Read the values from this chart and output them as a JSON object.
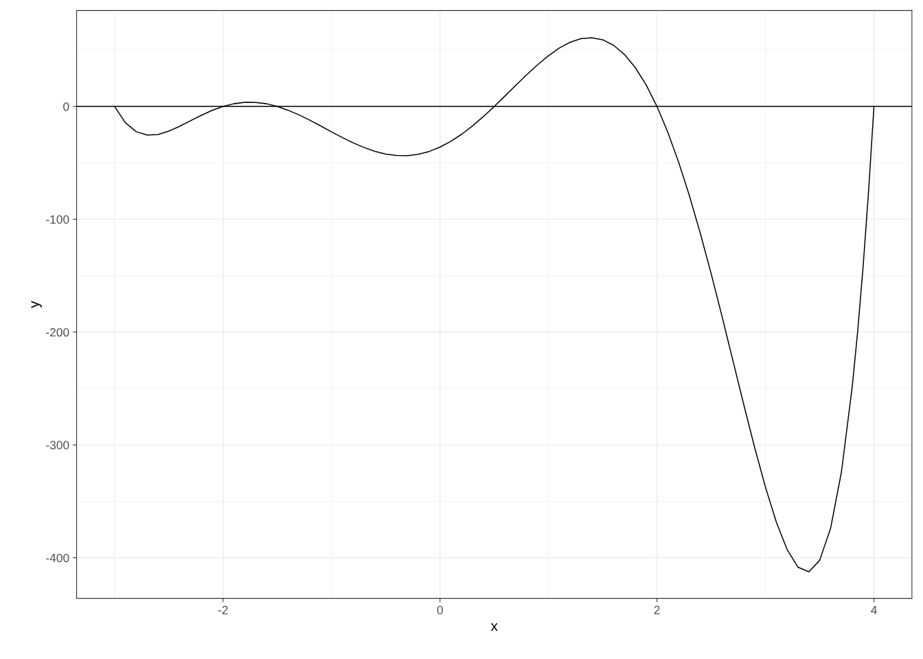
{
  "chart_data": {
    "type": "line",
    "xlabel": "x",
    "ylabel": "y",
    "x": [
      -3,
      -2.9,
      -2.8,
      -2.7,
      -2.6,
      -2.5,
      -2.4,
      -2.3,
      -2.2,
      -2.1,
      -2,
      -1.9,
      -1.8,
      -1.7,
      -1.6,
      -1.5,
      -1.4,
      -1.3,
      -1.2,
      -1.1,
      -1,
      -0.9,
      -0.8,
      -0.7,
      -0.6,
      -0.5,
      -0.4,
      -0.3,
      -0.2,
      -0.1,
      0,
      0.1,
      0.2,
      0.3,
      0.4,
      0.5,
      0.6,
      0.7,
      0.8,
      0.9,
      1,
      1.1,
      1.2,
      1.3,
      1.4,
      1.5,
      1.6,
      1.7,
      1.8,
      1.9,
      2,
      2.1,
      2.2,
      2.3,
      2.4,
      2.5,
      2.6,
      2.7,
      2.8,
      2.9,
      3,
      3.1,
      3.2,
      3.3,
      3.4,
      3.5,
      3.6,
      3.7,
      3.8,
      3.85,
      3.9,
      3.95,
      4
    ],
    "series": [
      {
        "color": "#000000",
        "values": [
          0,
          -14.5,
          -22.4,
          -25.4,
          -24.9,
          -21.9,
          -17.6,
          -12.7,
          -7.9,
          -3.5,
          0,
          2.4,
          3.7,
          3.6,
          2.4,
          0,
          -3.4,
          -7.5,
          -12.2,
          -17.3,
          -22.5,
          -27.6,
          -32.3,
          -36.4,
          -39.8,
          -42.2,
          -43.5,
          -43.6,
          -42.4,
          -39.9,
          -36,
          -30.9,
          -24.6,
          -17.2,
          -8.9,
          0,
          9.4,
          18.9,
          28.2,
          37,
          45,
          51.8,
          56.9,
          60.1,
          60.9,
          59.1,
          54.2,
          46.1,
          34.4,
          19.1,
          0,
          -22.9,
          -49.5,
          -79.5,
          -112.7,
          -148.5,
          -186.3,
          -225.3,
          -264.3,
          -302.2,
          -337.5,
          -368.4,
          -392.8,
          -408.4,
          -412.5,
          -402.2,
          -374,
          -324.1,
          -248.3,
          -199.3,
          -142,
          -75.8,
          0
        ]
      }
    ],
    "xlim": [
      -3.35,
      4.35
    ],
    "ylim": [
      -436,
      85
    ],
    "xticks": [
      -2,
      0,
      2,
      4
    ],
    "yticks": [
      -400,
      -300,
      -200,
      -100,
      0
    ],
    "ref_lines": [
      {
        "axis": "y",
        "value": 0,
        "color": "#000000"
      }
    ],
    "grid": true,
    "legend": false,
    "marker": "none",
    "line_style": "solid"
  }
}
